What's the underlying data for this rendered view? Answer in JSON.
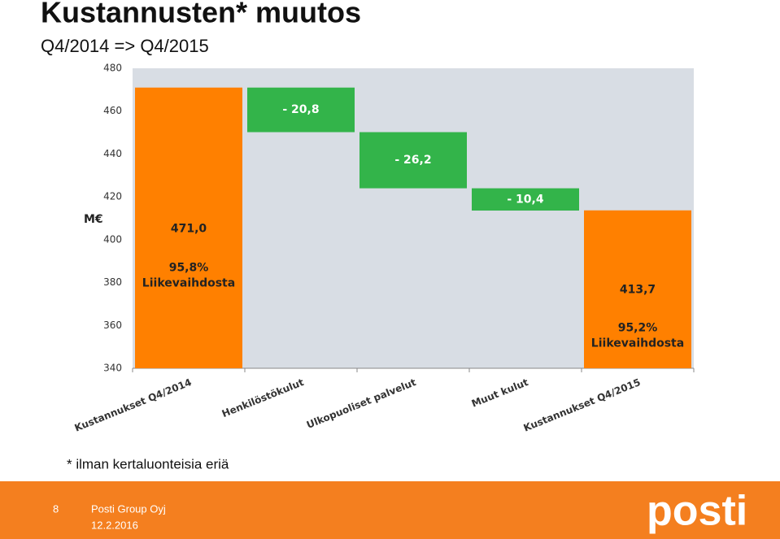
{
  "title": "Kustannusten* muutos",
  "subtitle": "Q4/2014 => Q4/2015",
  "chart_data": {
    "type": "waterfall",
    "categories": [
      "Kustannukset Q4/2014",
      "Henkilöstökulut",
      "Ulkopuoliset palvelut",
      "Muut kulut",
      "Kustannukset Q4/2015"
    ],
    "values": [
      471.0,
      -20.8,
      -26.2,
      -10.4,
      413.7
    ],
    "value_labels": [
      "471,0",
      "- 20,8",
      "- 26,2",
      "- 10,4",
      "413,7"
    ],
    "totals": [
      true,
      false,
      false,
      false,
      true
    ],
    "annotations": [
      [
        "95,8%",
        "Liikevaihdosta"
      ],
      null,
      null,
      null,
      [
        "95,2%",
        "Liikevaihdosta"
      ]
    ],
    "total_color": "#ff8000",
    "change_color": "#33b44a",
    "ylabel": "M€",
    "ylim": [
      340,
      480
    ],
    "yticks": [
      340,
      360,
      380,
      400,
      420,
      440,
      460,
      480
    ]
  },
  "footnote": "* ilman kertaluonteisia eriä",
  "footer": {
    "page": "8",
    "company": "Posti Group Oyj",
    "date": "12.2.2016",
    "logo": "posti"
  }
}
